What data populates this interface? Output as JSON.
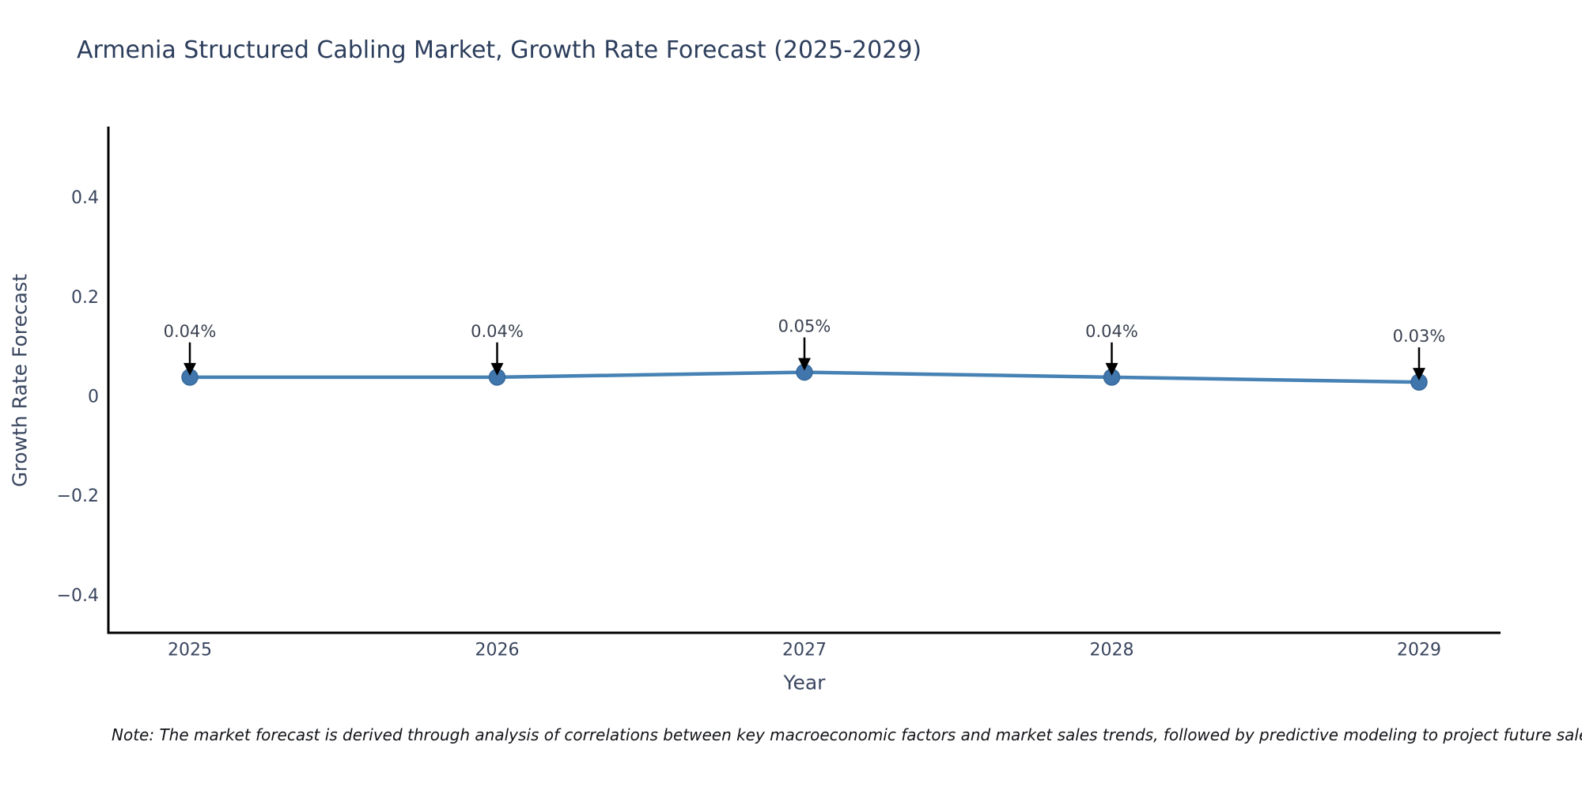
{
  "chart_data": {
    "type": "line",
    "title": "Armenia Structured Cabling Market, Growth Rate Forecast (2025-2029)",
    "xlabel": "Year",
    "ylabel": "Growth Rate Forecast",
    "categories": [
      "2025",
      "2026",
      "2027",
      "2028",
      "2029"
    ],
    "series": [
      {
        "name": "Growth Rate Forecast",
        "values": [
          0.04,
          0.04,
          0.05,
          0.04,
          0.03
        ],
        "point_labels": [
          "0.04%",
          "0.04%",
          "0.05%",
          "0.04%",
          "0.03%"
        ]
      }
    ],
    "y_ticks": [
      {
        "label": "0.4",
        "value": 0.4
      },
      {
        "label": "0.2",
        "value": 0.2
      },
      {
        "label": "0",
        "value": 0
      },
      {
        "label": "−0.2",
        "value": -0.2
      },
      {
        "label": "−0.4",
        "value": -0.4
      }
    ],
    "ylim": [
      -0.474,
      0.544
    ],
    "grid": false,
    "legend_position": "none",
    "colors": {
      "line": "#4682b4",
      "marker": "#4076ac",
      "marker_edge": "#38699c",
      "annotation_text": "#3a4150",
      "annotation_arrow": "#000000",
      "axis_line": "#000000",
      "tick_label": "#39455e"
    }
  },
  "note": "Note: The market forecast is derived through analysis of correlations between key macroeconomic factors and market sales trends, followed by predictive modeling to project future sales."
}
